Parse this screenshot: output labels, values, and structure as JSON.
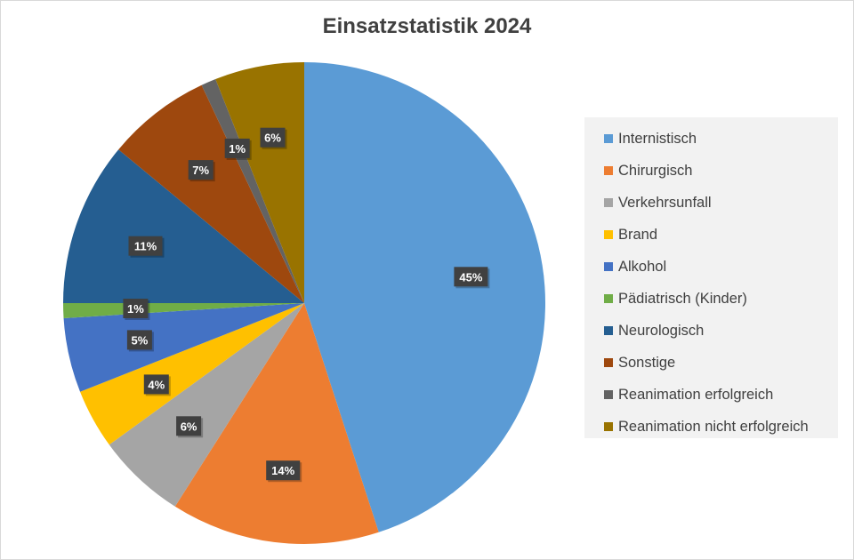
{
  "chart_data": {
    "type": "pie",
    "title": "Einsatzstatistik 2024",
    "slices": [
      {
        "label": "Internistisch",
        "value": 45,
        "display": "45%",
        "color": "#5b9bd5"
      },
      {
        "label": "Chirurgisch",
        "value": 14,
        "display": "14%",
        "color": "#ed7d31"
      },
      {
        "label": "Verkehrsunfall",
        "value": 6,
        "display": "6%",
        "color": "#a5a5a5"
      },
      {
        "label": "Brand",
        "value": 4,
        "display": "4%",
        "color": "#ffc000"
      },
      {
        "label": "Alkohol",
        "value": 5,
        "display": "5%",
        "color": "#4472c4"
      },
      {
        "label": "Pädiatrisch (Kinder)",
        "value": 1,
        "display": "1%",
        "color": "#70ad47"
      },
      {
        "label": "Neurologisch",
        "value": 11,
        "display": "11%",
        "color": "#255e91"
      },
      {
        "label": "Sonstige",
        "value": 7,
        "display": "7%",
        "color": "#9e480e"
      },
      {
        "label": "Reanimation erfolgreich",
        "value": 1,
        "display": "1%",
        "color": "#636363"
      },
      {
        "label": "Reanimation nicht erfolgreich",
        "value": 6,
        "display": "6%",
        "color": "#997300"
      }
    ],
    "legend_position": "right",
    "data_labels": true
  }
}
